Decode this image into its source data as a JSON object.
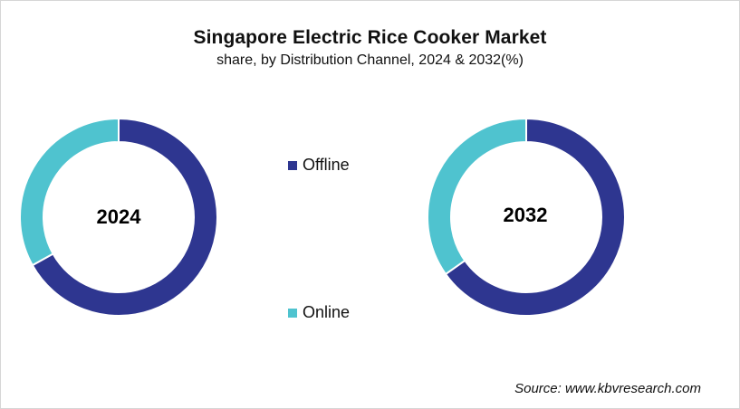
{
  "title": "Singapore Electric Rice Cooker Market",
  "subtitle": "share, by Distribution Channel, 2024 & 2032(%)",
  "source": "Source: www.kbvresearch.com",
  "colors": {
    "offline": "#2e3690",
    "online": "#4fc3cf"
  },
  "legend": [
    {
      "label": "Offline",
      "color": "#2e3690"
    },
    {
      "label": "Online",
      "color": "#4fc3cf"
    }
  ],
  "charts": [
    {
      "label": "2024"
    },
    {
      "label": "2032"
    }
  ],
  "chart_data": [
    {
      "type": "pie",
      "title": "2024",
      "categories": [
        "Offline",
        "Online"
      ],
      "values": [
        66.9,
        33.1
      ],
      "colors": [
        "#2e3690",
        "#4fc3cf"
      ],
      "donut": true,
      "legend_position": "center"
    },
    {
      "type": "pie",
      "title": "2032",
      "categories": [
        "Offline",
        "Online"
      ],
      "values": [
        65.2,
        34.8
      ],
      "colors": [
        "#2e3690",
        "#4fc3cf"
      ],
      "donut": true,
      "legend_position": "center"
    }
  ]
}
